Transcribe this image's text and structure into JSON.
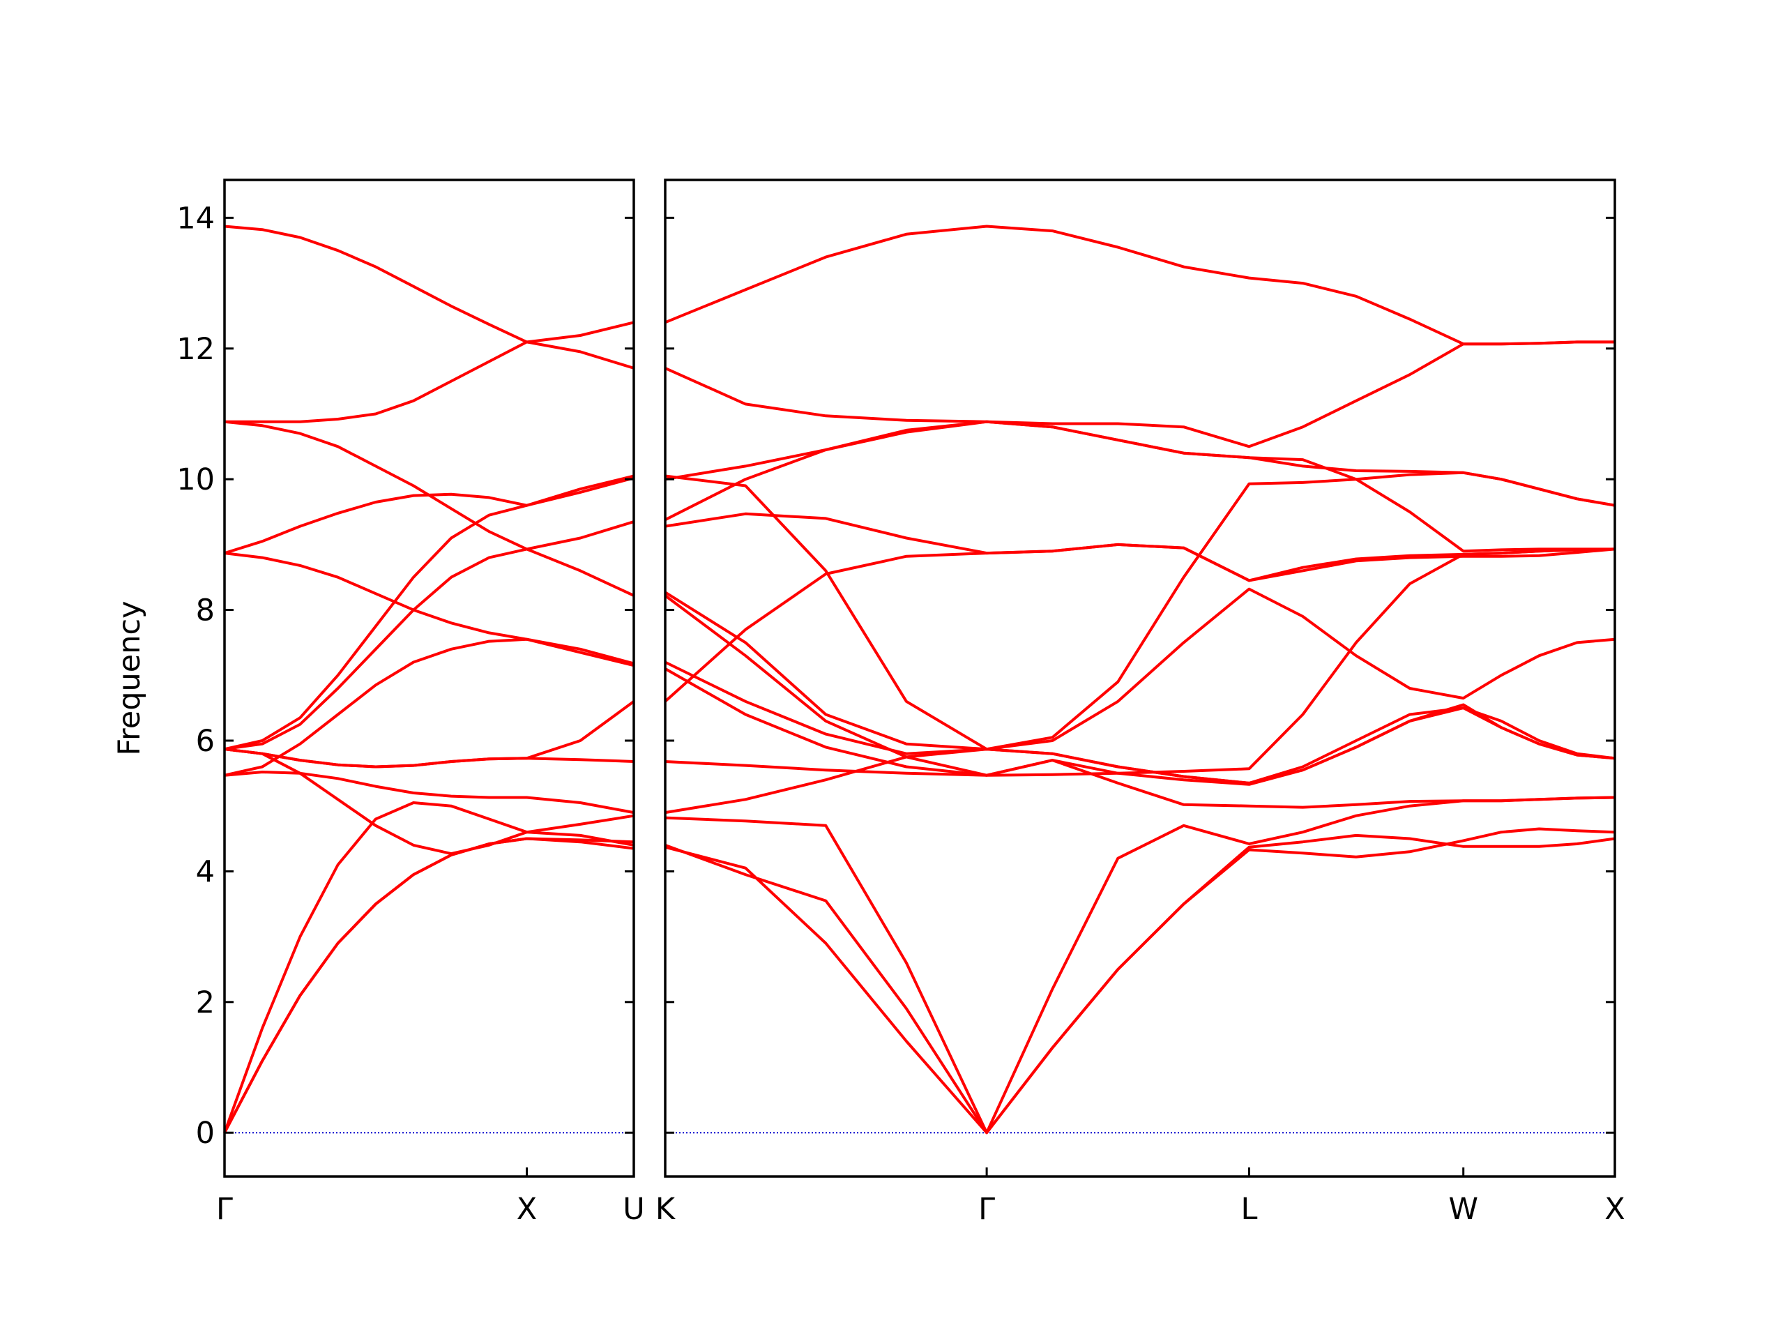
{
  "chart_data": [
    {
      "type": "line",
      "ylabel": "Frequency",
      "color": "#ff0000",
      "show_ytick_labels": true,
      "hline": 0,
      "hline_color": "#0000cc",
      "x": [
        0,
        0.125,
        0.25,
        0.375,
        0.5,
        0.625,
        0.75,
        0.875,
        1.0,
        1.177,
        1.354
      ],
      "xlim": [
        0,
        1.354
      ],
      "xticks": [
        {
          "value": 0,
          "label": "Γ"
        },
        {
          "value": 1.0,
          "label": "X"
        },
        {
          "value": 1.354,
          "label": "U"
        }
      ],
      "ylim": [
        -0.67,
        14.58
      ],
      "yticks": [
        0,
        2,
        4,
        6,
        8,
        10,
        12,
        14
      ],
      "series": [
        {
          "values": [
            13.87,
            13.82,
            13.7,
            13.5,
            13.25,
            12.95,
            12.65,
            12.37,
            12.1,
            12.2,
            12.4
          ]
        },
        {
          "values": [
            10.88,
            10.88,
            10.88,
            10.92,
            11.0,
            11.2,
            11.5,
            11.8,
            12.1,
            11.95,
            11.7
          ]
        },
        {
          "values": [
            10.88,
            10.82,
            10.7,
            10.5,
            10.2,
            9.9,
            9.55,
            9.2,
            8.93,
            8.6,
            8.22
          ]
        },
        {
          "values": [
            8.87,
            9.05,
            9.28,
            9.48,
            9.65,
            9.75,
            9.77,
            9.72,
            9.6,
            9.8,
            10.02
          ]
        },
        {
          "values": [
            8.87,
            8.8,
            8.68,
            8.5,
            8.25,
            8.0,
            7.8,
            7.65,
            7.55,
            7.4,
            7.18
          ]
        },
        {
          "values": [
            5.87,
            6.0,
            6.35,
            7.0,
            7.75,
            8.5,
            9.1,
            9.45,
            9.6,
            9.85,
            10.05
          ]
        },
        {
          "values": [
            5.87,
            5.95,
            6.25,
            6.8,
            7.4,
            8.0,
            8.5,
            8.8,
            8.93,
            9.1,
            9.35
          ]
        },
        {
          "values": [
            5.47,
            5.6,
            5.95,
            6.4,
            6.85,
            7.2,
            7.4,
            7.52,
            7.55,
            7.35,
            7.15
          ]
        },
        {
          "values": [
            5.87,
            5.8,
            5.7,
            5.63,
            5.6,
            5.62,
            5.68,
            5.72,
            5.73,
            5.71,
            5.68
          ]
        },
        {
          "values": [
            5.87,
            5.8,
            5.7,
            5.63,
            5.6,
            5.62,
            5.68,
            5.72,
            5.73,
            6.0,
            6.6
          ]
        },
        {
          "values": [
            5.87,
            5.8,
            5.5,
            5.1,
            4.7,
            4.4,
            4.27,
            4.4,
            4.6,
            4.72,
            4.85
          ]
        },
        {
          "values": [
            5.47,
            5.52,
            5.5,
            5.42,
            5.3,
            5.2,
            5.15,
            5.13,
            5.13,
            5.05,
            4.9
          ]
        },
        {
          "values": [
            0,
            1.6,
            3.0,
            4.1,
            4.8,
            5.05,
            5.0,
            4.8,
            4.6,
            4.55,
            4.4
          ]
        },
        {
          "values": [
            0,
            1.1,
            2.1,
            2.9,
            3.5,
            3.95,
            4.25,
            4.42,
            4.5,
            4.45,
            4.35
          ]
        },
        {
          "values": [
            0,
            1.1,
            2.1,
            2.9,
            3.5,
            3.95,
            4.25,
            4.42,
            4.5,
            4.48,
            4.45
          ]
        }
      ]
    },
    {
      "type": "line",
      "color": "#ff0000",
      "show_ytick_labels": false,
      "hline": 0,
      "hline_color": "#0000cc",
      "x": [
        0,
        0.265,
        0.53,
        0.796,
        1.061,
        1.278,
        1.494,
        1.711,
        1.927,
        2.104,
        2.28,
        2.457,
        2.634,
        2.759,
        2.884,
        3.009,
        3.134
      ],
      "xlim": [
        0,
        3.134
      ],
      "xticks": [
        {
          "value": 0,
          "label": "K"
        },
        {
          "value": 1.061,
          "label": "Γ"
        },
        {
          "value": 1.927,
          "label": "L"
        },
        {
          "value": 2.634,
          "label": "W"
        },
        {
          "value": 3.134,
          "label": "X"
        }
      ],
      "ylim": [
        -0.67,
        14.58
      ],
      "yticks": [
        0,
        2,
        4,
        6,
        8,
        10,
        12,
        14
      ],
      "series": [
        {
          "values": [
            12.4,
            12.9,
            13.4,
            13.75,
            13.87,
            13.8,
            13.55,
            13.25,
            13.08,
            13.0,
            12.8,
            12.45,
            12.07,
            12.07,
            12.08,
            12.1,
            12.1
          ]
        },
        {
          "values": [
            11.7,
            11.15,
            10.97,
            10.9,
            10.88,
            10.85,
            10.85,
            10.8,
            10.5,
            10.8,
            11.2,
            11.6,
            12.07,
            12.07,
            12.08,
            12.1,
            12.1
          ]
        },
        {
          "values": [
            10.0,
            10.2,
            10.45,
            10.72,
            10.88,
            10.8,
            10.6,
            10.4,
            10.33,
            10.2,
            10.13,
            10.12,
            10.1,
            10.0,
            9.85,
            9.7,
            9.6
          ]
        },
        {
          "values": [
            10.05,
            9.9,
            8.6,
            6.6,
            5.87,
            6.05,
            6.9,
            8.5,
            9.93,
            9.95,
            10.0,
            10.07,
            10.1,
            10.0,
            9.85,
            9.7,
            9.6
          ]
        },
        {
          "values": [
            9.38,
            10.0,
            10.45,
            10.75,
            10.88,
            10.8,
            10.6,
            10.4,
            10.33,
            10.3,
            10.0,
            9.5,
            8.9,
            8.92,
            8.93,
            8.93,
            8.93
          ]
        },
        {
          "values": [
            9.28,
            9.47,
            9.4,
            9.1,
            8.87,
            8.9,
            9.0,
            8.95,
            8.45,
            8.65,
            8.78,
            8.83,
            8.85,
            8.87,
            8.9,
            8.92,
            8.93
          ]
        },
        {
          "values": [
            6.6,
            7.7,
            8.55,
            8.82,
            8.87,
            8.9,
            9.0,
            8.95,
            8.45,
            8.6,
            8.75,
            8.8,
            8.82,
            8.82,
            8.83,
            8.88,
            8.93
          ]
        },
        {
          "values": [
            8.27,
            7.5,
            6.4,
            5.95,
            5.87,
            6.0,
            6.6,
            7.5,
            8.32,
            7.9,
            7.3,
            6.8,
            6.65,
            7.0,
            7.3,
            7.5,
            7.55
          ]
        },
        {
          "values": [
            8.22,
            7.3,
            6.3,
            5.75,
            5.47,
            5.48,
            5.5,
            5.53,
            5.57,
            6.4,
            7.5,
            8.4,
            8.85,
            8.87,
            8.9,
            8.92,
            8.93
          ]
        },
        {
          "values": [
            7.2,
            6.6,
            6.1,
            5.8,
            5.87,
            5.8,
            5.6,
            5.45,
            5.35,
            5.6,
            6.0,
            6.4,
            6.5,
            6.3,
            6.0,
            5.8,
            5.73
          ]
        },
        {
          "values": [
            7.1,
            6.4,
            5.9,
            5.6,
            5.47,
            5.7,
            5.5,
            5.4,
            5.33,
            5.55,
            5.9,
            6.3,
            6.55,
            6.2,
            5.95,
            5.78,
            5.73
          ]
        },
        {
          "values": [
            5.68,
            5.62,
            5.55,
            5.5,
            5.47,
            5.7,
            5.35,
            5.02,
            5.0,
            4.98,
            5.02,
            5.07,
            5.08,
            5.08,
            5.1,
            5.12,
            5.13
          ]
        },
        {
          "values": [
            4.9,
            5.1,
            5.4,
            5.75,
            5.87,
            5.8,
            5.6,
            5.45,
            5.35,
            5.55,
            5.9,
            6.3,
            6.5,
            6.2,
            5.95,
            5.78,
            5.73
          ]
        },
        {
          "values": [
            4.82,
            4.77,
            4.7,
            2.6,
            0,
            2.2,
            4.2,
            4.7,
            4.42,
            4.6,
            4.85,
            5.0,
            5.08,
            5.08,
            5.1,
            5.12,
            5.13
          ]
        },
        {
          "values": [
            4.4,
            3.95,
            3.55,
            1.9,
            0,
            1.3,
            2.5,
            3.5,
            4.33,
            4.28,
            4.22,
            4.3,
            4.47,
            4.6,
            4.65,
            4.62,
            4.6
          ]
        },
        {
          "values": [
            4.37,
            4.05,
            2.9,
            1.4,
            0,
            1.3,
            2.5,
            3.5,
            4.37,
            4.45,
            4.55,
            4.5,
            4.38,
            4.38,
            4.38,
            4.42,
            4.5
          ]
        }
      ]
    }
  ]
}
